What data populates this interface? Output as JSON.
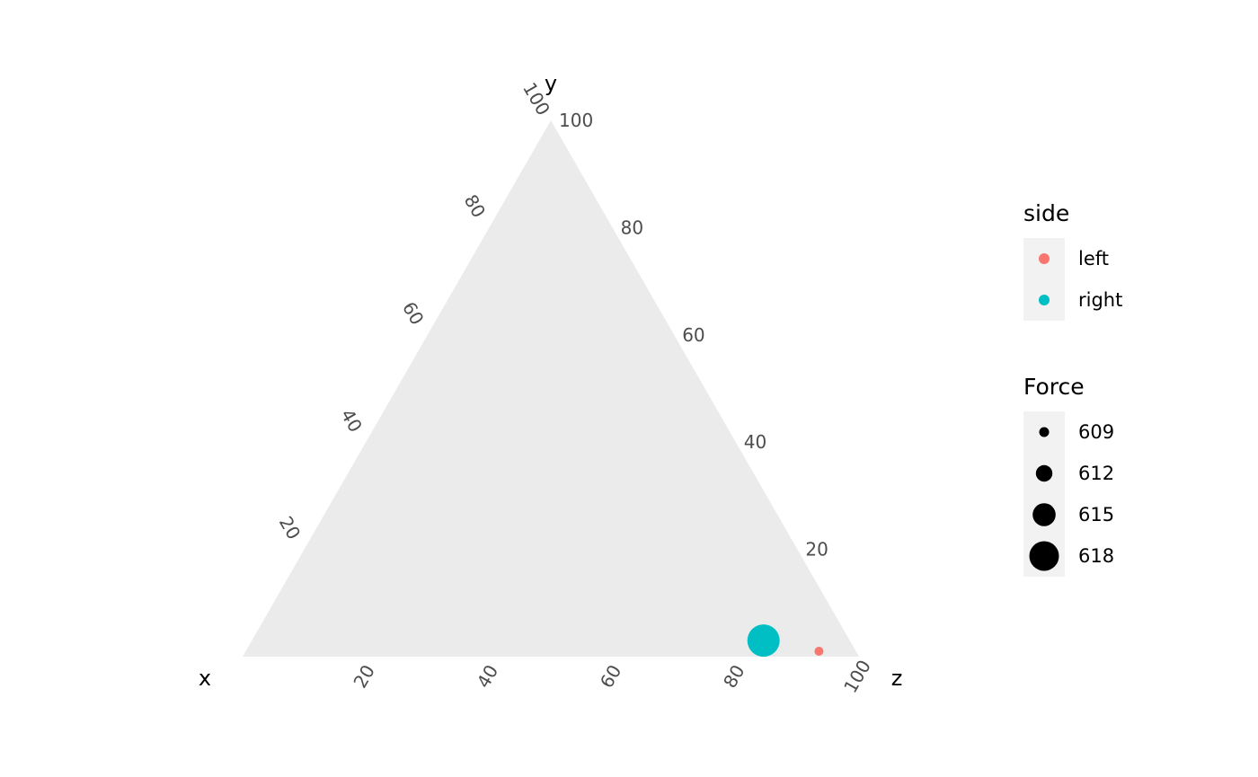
{
  "chart_data": {
    "type": "scatter",
    "subtype": "ternary",
    "axes": {
      "x": {
        "label": "x",
        "ticks": [
          "20",
          "40",
          "60",
          "80",
          "100"
        ]
      },
      "y": {
        "label": "y",
        "ticks": [
          "20",
          "40",
          "60",
          "80",
          "100"
        ]
      },
      "z": {
        "label": "z",
        "ticks": [
          "20",
          "40",
          "60",
          "80",
          "100"
        ]
      }
    },
    "series": [
      {
        "side": "left",
        "x": 6,
        "y": 1,
        "z": 93,
        "force": 609,
        "color": "#F8766D"
      },
      {
        "side": "right",
        "x": 14,
        "y": 3,
        "z": 83,
        "force": 618,
        "color": "#00BFC4"
      }
    ],
    "grid": false,
    "panel_color": "#EBEBEB",
    "legend": {
      "placement": "right",
      "color_legend": {
        "title": "side",
        "items": [
          {
            "label": "left",
            "color": "#F8766D"
          },
          {
            "label": "right",
            "color": "#00BFC4"
          }
        ]
      },
      "size_legend": {
        "title": "Force",
        "items": [
          {
            "label": "609",
            "value": 609
          },
          {
            "label": "612",
            "value": 612
          },
          {
            "label": "615",
            "value": 615
          },
          {
            "label": "618",
            "value": 618
          }
        ],
        "range": [
          609,
          618
        ]
      }
    }
  }
}
